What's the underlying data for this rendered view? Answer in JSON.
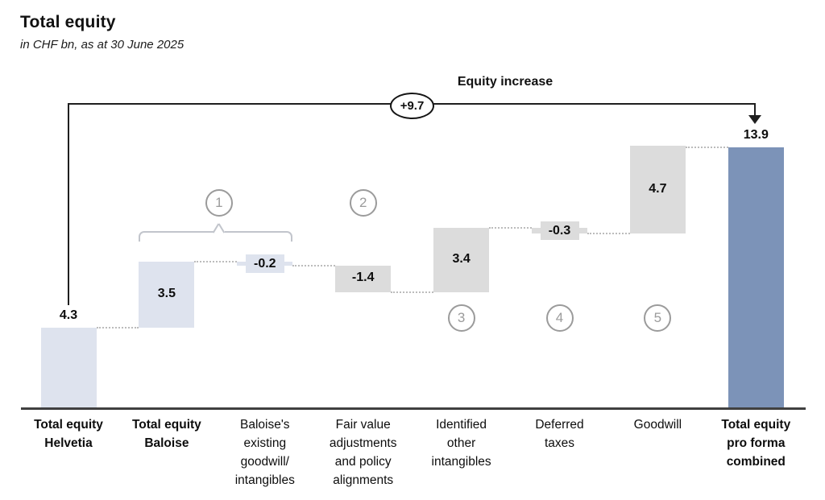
{
  "header": {
    "title": "Total equity",
    "subtitle": "in CHF bn, as at 30 June 2025"
  },
  "flow_annotation": {
    "label": "Equity increase",
    "value": "+9.7"
  },
  "chart_data": {
    "type": "bar",
    "subtype": "waterfall",
    "title": "Total equity",
    "subtitle": "in CHF bn, as at 30 June 2025",
    "unit": "CHF bn",
    "ylim": [
      0,
      14.5
    ],
    "grid": false,
    "equity_increase": {
      "label": "Equity increase",
      "display": "+9.7",
      "from_category": 0,
      "to_category": 7
    },
    "categories": [
      "Total equity Helvetia",
      "Total equity Baloise",
      "Baloise's existing goodwill/intangibles",
      "Fair value adjustments and policy alignments",
      "Identified other intangibles",
      "Deferred taxes",
      "Goodwill",
      "Total equity pro forma combined"
    ],
    "bars": [
      {
        "label_lines": [
          "Total equity",
          "Helvetia"
        ],
        "kind": "start",
        "value": 4.3,
        "display": "4.3",
        "color": "lightblue",
        "bold_label": true,
        "value_pos": "above"
      },
      {
        "label_lines": [
          "Total equity",
          "Baloise"
        ],
        "kind": "delta",
        "value": 3.5,
        "display": "3.5",
        "color": "lightblue",
        "bold_label": true,
        "value_pos": "inside"
      },
      {
        "label_lines": [
          "Baloise's",
          "existing",
          "goodwill/",
          "intangibles"
        ],
        "kind": "delta",
        "value": -0.2,
        "display": "-0.2",
        "color": "lightblue",
        "bold_label": false,
        "value_pos": "box"
      },
      {
        "label_lines": [
          "Fair value",
          "adjustments",
          "and policy",
          "alignments"
        ],
        "kind": "delta",
        "value": -1.4,
        "display": "-1.4",
        "color": "gray",
        "bold_label": false,
        "value_pos": "inside"
      },
      {
        "label_lines": [
          "Identified",
          "other",
          "intangibles"
        ],
        "kind": "delta",
        "value": 3.4,
        "display": "3.4",
        "color": "gray",
        "bold_label": false,
        "value_pos": "inside"
      },
      {
        "label_lines": [
          "Deferred",
          "taxes"
        ],
        "kind": "delta",
        "value": -0.3,
        "display": "-0.3",
        "color": "gray",
        "bold_label": false,
        "value_pos": "box"
      },
      {
        "label_lines": [
          "Goodwill"
        ],
        "kind": "delta",
        "value": 4.7,
        "display": "4.7",
        "color": "gray",
        "bold_label": false,
        "value_pos": "inside"
      },
      {
        "label_lines": [
          "Total equity",
          "pro forma",
          "combined"
        ],
        "kind": "total",
        "value": 13.9,
        "display": "13.9",
        "color": "blue",
        "bold_label": true,
        "value_pos": "above"
      }
    ],
    "annotations": [
      {
        "label": "1",
        "placement": "above",
        "span": [
          1,
          2
        ]
      },
      {
        "label": "2",
        "placement": "above",
        "cat": 3
      },
      {
        "label": "3",
        "placement": "below",
        "cat": 4
      },
      {
        "label": "4",
        "placement": "below",
        "cat": 5
      },
      {
        "label": "5",
        "placement": "below",
        "cat": 6
      }
    ],
    "brace": {
      "span": [
        1,
        2
      ]
    },
    "colors": {
      "lightblue": "#dee3ee",
      "gray": "#dcdcdc",
      "blue": "#7c93b8",
      "axis": "#404040",
      "connector": "#bcbcbc",
      "circle": "#9b9b9b",
      "brace": "#c2c5cc",
      "arrow": "#1f1f1f"
    }
  }
}
